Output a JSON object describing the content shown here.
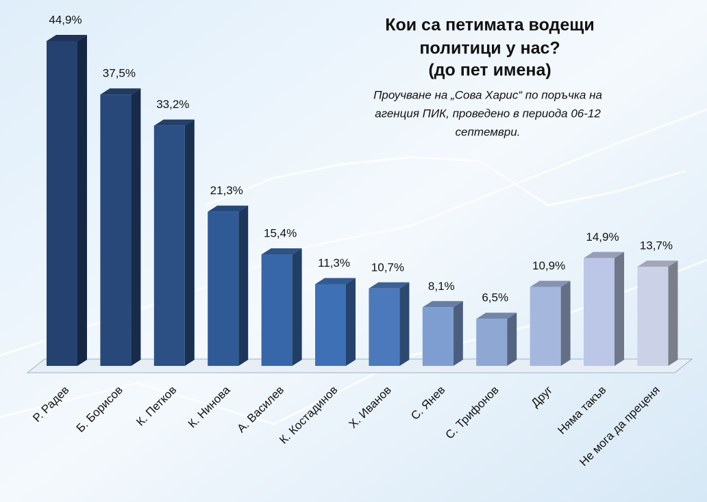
{
  "chart_data": {
    "type": "bar",
    "title": [
      "Кои са петимата водещи",
      "политици у нас?",
      "(до пет имена)"
    ],
    "subtitle": [
      "Проучване на „Сова Харис“ по поръчка на",
      "агенция ПИК, проведено в периода 06-12",
      "септември."
    ],
    "categories": [
      "Р. Радев",
      "Б. Борисов",
      "К. Петков",
      "К. Нинова",
      "А. Василев",
      "К. Костадинов",
      "Х. Иванов",
      "С. Янев",
      "С. Трифонов",
      "Друг",
      "Няма такъв",
      "Не мога да преценя"
    ],
    "values": [
      44.9,
      37.5,
      33.2,
      21.3,
      15.4,
      11.3,
      10.7,
      8.1,
      6.5,
      10.9,
      14.9,
      13.7
    ],
    "value_labels": [
      "44,9%",
      "37,5%",
      "33,2%",
      "21,3%",
      "15,4%",
      "11,3%",
      "10,7%",
      "8,1%",
      "6,5%",
      "10,9%",
      "14,9%",
      "13,7%"
    ],
    "colors": [
      "#25416f",
      "#284879",
      "#2c5084",
      "#305a96",
      "#3767a8",
      "#3e70b5",
      "#4b79bb",
      "#7e9dd0",
      "#8ea7d3",
      "#a6b7de",
      "#bcc6e6",
      "#cbd1e6"
    ]
  }
}
